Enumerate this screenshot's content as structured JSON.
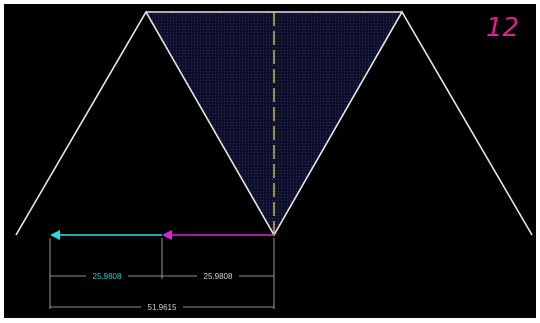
{
  "annotation": {
    "text": "12",
    "color": "#e0208a"
  },
  "colors": {
    "background": "#000000",
    "outline": "#e6e6e6",
    "fill": "#121436",
    "centerline": "#c8c840",
    "arrow_cyan": "#22e0e0",
    "arrow_magenta": "#e020e0",
    "dimension_line": "#bdbdbd",
    "dim_text_cyan": "#22c8c8",
    "dim_text_white": "#d0d0d0"
  },
  "dimensions": {
    "segment_left": "25.9808",
    "segment_right": "25.9808",
    "total": "51.9615"
  }
}
